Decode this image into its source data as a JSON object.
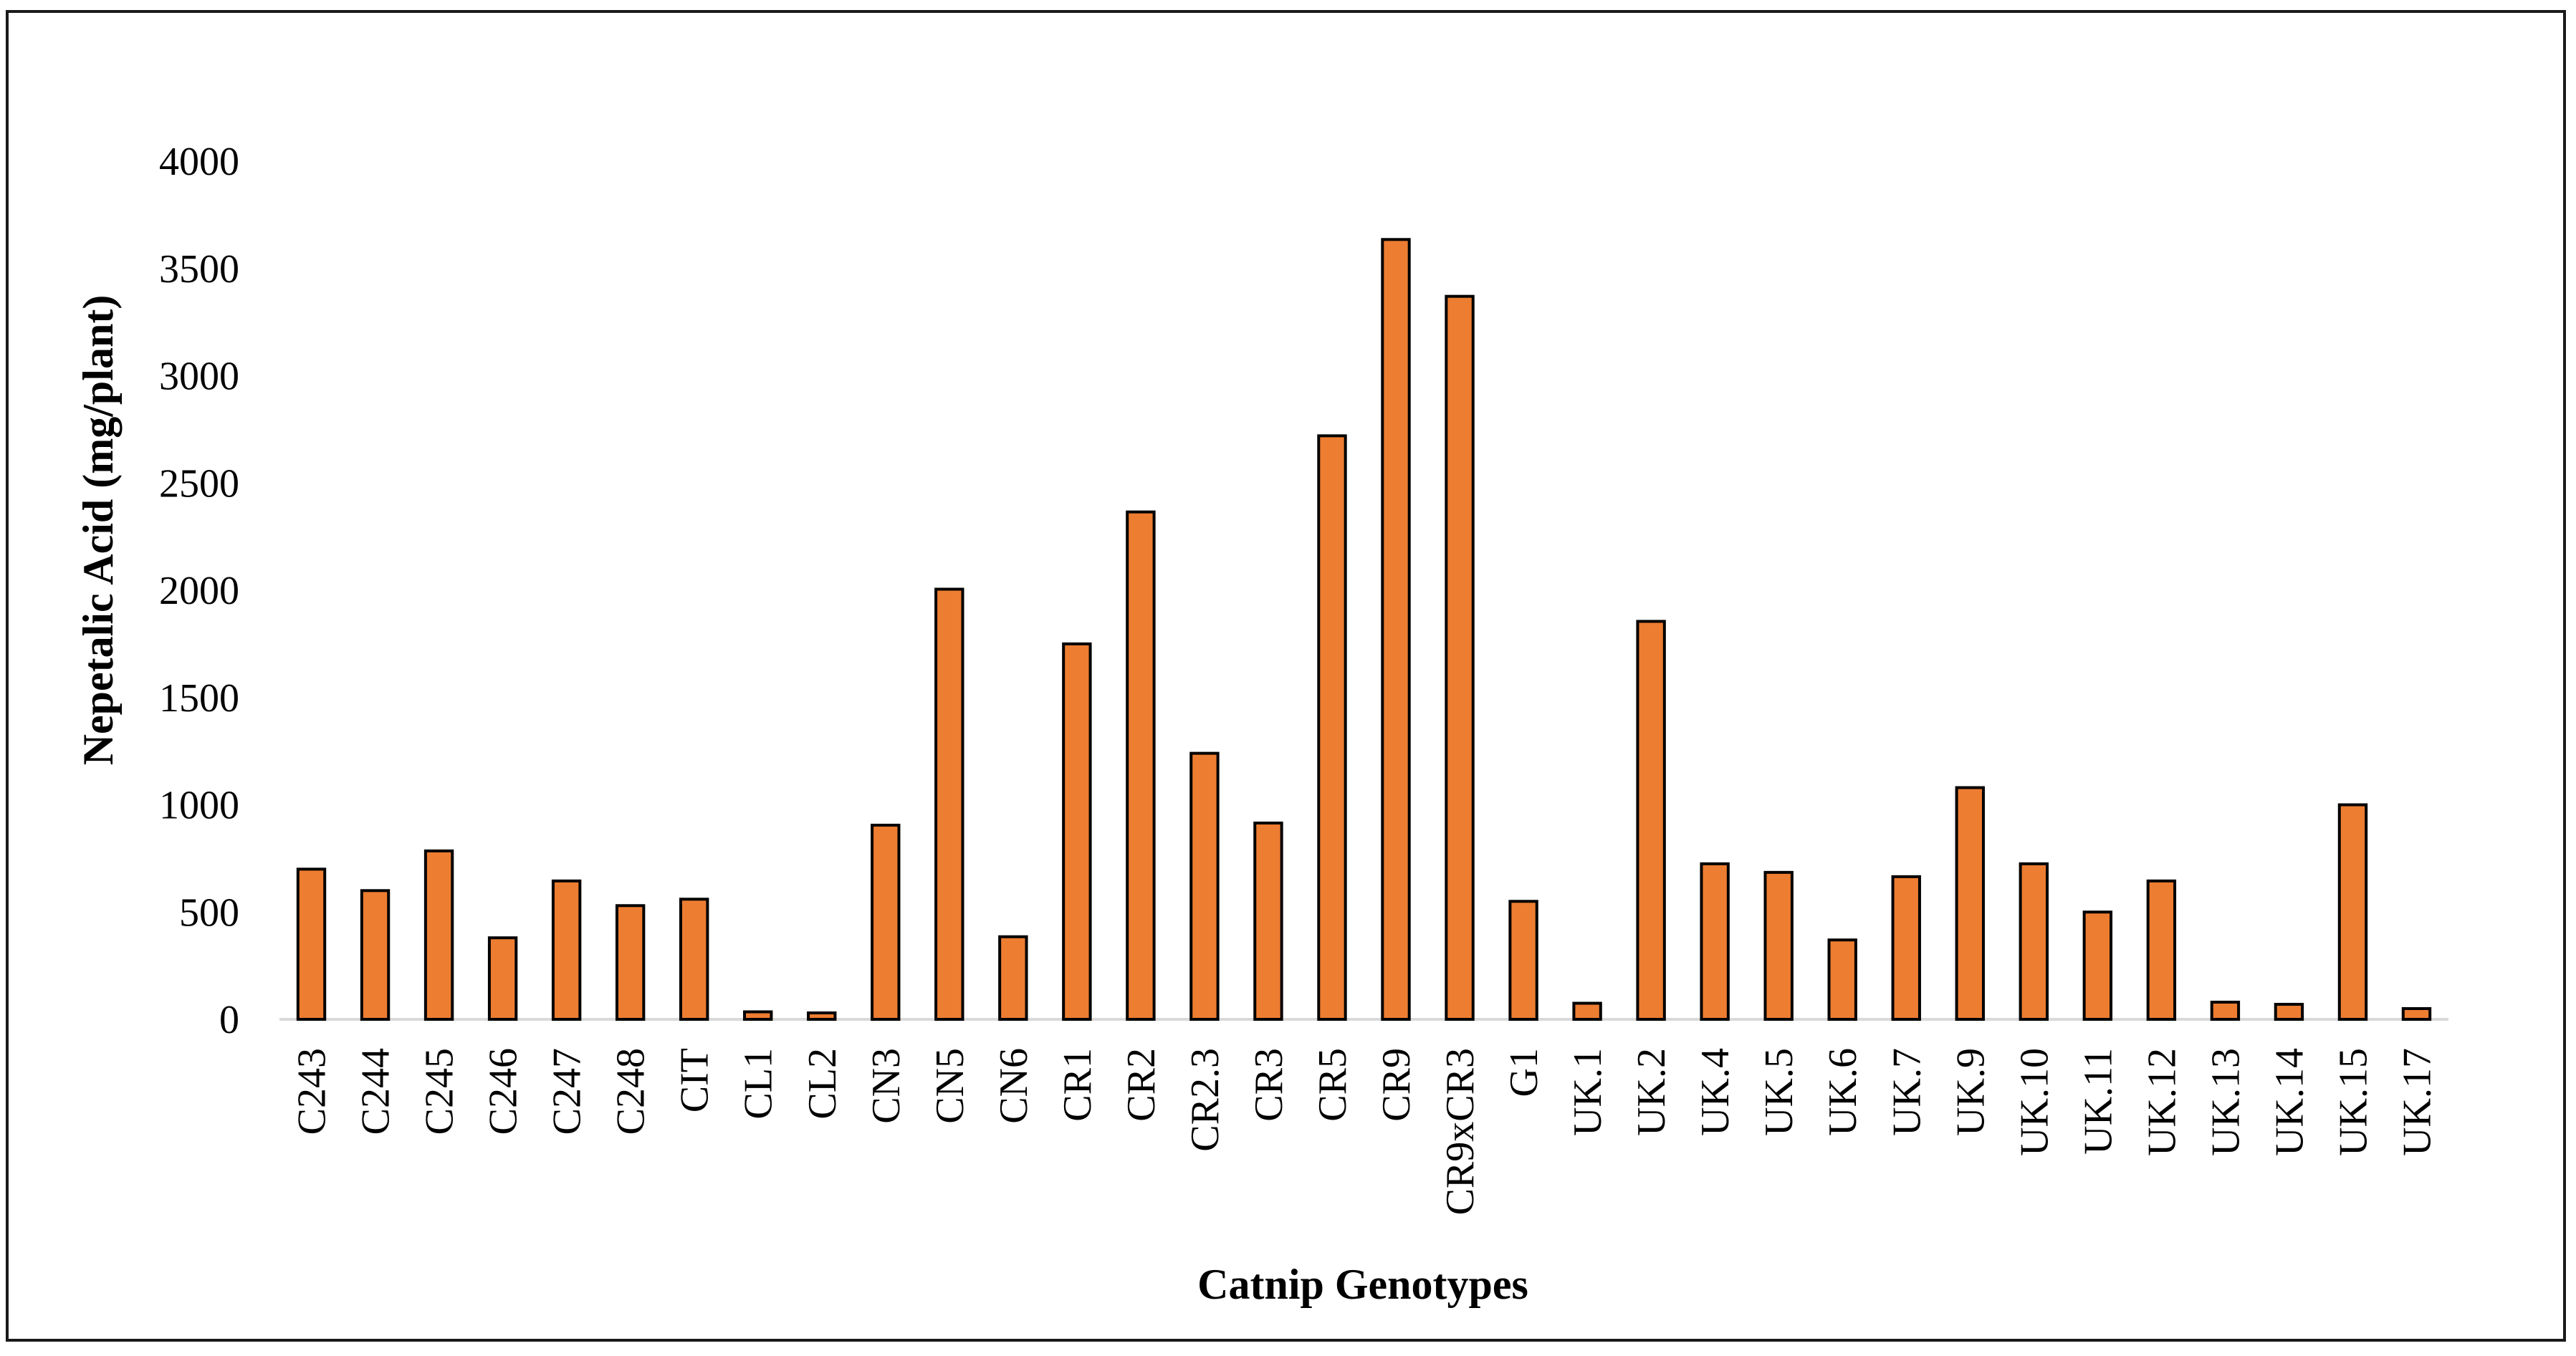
{
  "chart_data": {
    "type": "bar",
    "title": "",
    "xlabel": "Catnip Genotypes",
    "ylabel": "Nepetalic Acid (mg/plant)",
    "ylim": [
      0,
      4000
    ],
    "yticks": [
      0,
      500,
      1000,
      1500,
      2000,
      2500,
      3000,
      3500,
      4000
    ],
    "grid": false,
    "legend": "none",
    "bar_color": "#ED7D31",
    "bar_edge_color": "#000000",
    "categories": [
      "C243",
      "C244",
      "C245",
      "C246",
      "C247",
      "C248",
      "CIT",
      "CL1",
      "CL2",
      "CN3",
      "CN5",
      "CN6",
      "CR1",
      "CR2",
      "CR2.3",
      "CR3",
      "CR5",
      "CR9",
      "CR9xCR3",
      "G1",
      "UK.1",
      "UK.2",
      "UK.4",
      "UK.5",
      "UK.6",
      "UK.7",
      "UK.9",
      "UK.10",
      "UK.11",
      "UK.12",
      "UK.13",
      "UK.14",
      "UK.15",
      "UK.17"
    ],
    "values": [
      700,
      600,
      785,
      380,
      645,
      530,
      560,
      35,
      30,
      905,
      2005,
      385,
      1750,
      2365,
      1240,
      915,
      2720,
      3635,
      3370,
      550,
      75,
      1855,
      725,
      685,
      370,
      665,
      1080,
      725,
      500,
      645,
      80,
      70,
      1000,
      50
    ]
  }
}
